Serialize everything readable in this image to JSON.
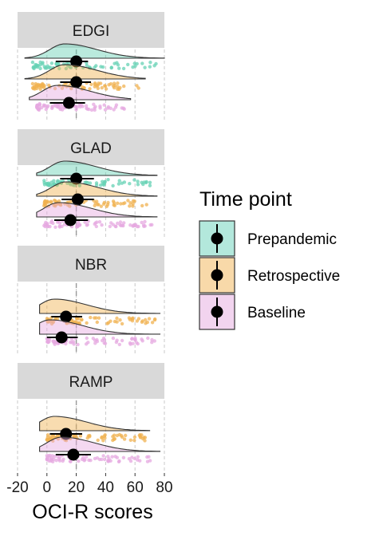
{
  "chart_data": {
    "type": "raincloud",
    "xlabel": "OCI-R scores",
    "xlim": [
      -20,
      80
    ],
    "xticks": [
      "-20",
      "0",
      "20",
      "40",
      "60",
      "80"
    ],
    "xtick_values": [
      -20,
      0,
      20,
      40,
      60,
      80
    ],
    "grid": "vertical dashed",
    "reference_line": 20,
    "legend": {
      "title": "Time point",
      "position": "right",
      "entries": [
        "Prepandemic",
        "Retrospective",
        "Baseline"
      ]
    },
    "colors": {
      "Prepandemic": "#66d1b4",
      "Retrospective": "#f0b250",
      "Baseline": "#e6a8e0",
      "Prepandemic_key": "#b3e8dc",
      "Retrospective_key": "#f8d9a9",
      "Baseline_key": "#f2d4ef"
    },
    "panels": [
      {
        "name": "EDGI",
        "groups": [
          {
            "series": "Prepandemic",
            "x": [
              20
            ],
            "mean": 20,
            "ci": [
              6,
              28
            ],
            "min": -15,
            "max": 80
          },
          {
            "series": "Retrospective",
            "x": [
              20
            ],
            "mean": 20,
            "ci": [
              9,
              30
            ],
            "min": -15,
            "max": 67
          },
          {
            "series": "Baseline",
            "x": [
              15
            ],
            "mean": 15,
            "ci": [
              2,
              26
            ],
            "min": -12,
            "max": 57
          }
        ]
      },
      {
        "name": "GLAD",
        "groups": [
          {
            "series": "Prepandemic",
            "x": [
              20
            ],
            "mean": 20,
            "ci": [
              9,
              32
            ],
            "min": -7,
            "max": 75
          },
          {
            "series": "Retrospective",
            "x": [
              21
            ],
            "mean": 21,
            "ci": [
              10,
              32
            ],
            "min": -7,
            "max": 75
          },
          {
            "series": "Baseline",
            "x": [
              16
            ],
            "mean": 16,
            "ci": [
              5,
              28
            ],
            "min": -7,
            "max": 75
          }
        ]
      },
      {
        "name": "NBR",
        "groups": [
          {
            "series": "Retrospective",
            "x": [
              13
            ],
            "mean": 13,
            "ci": [
              3,
              24
            ],
            "min": -5,
            "max": 77
          },
          {
            "series": "Baseline",
            "x": [
              10
            ],
            "mean": 10,
            "ci": [
              0,
              21
            ],
            "min": -5,
            "max": 77
          }
        ]
      },
      {
        "name": "RAMP",
        "groups": [
          {
            "series": "Retrospective",
            "x": [
              13
            ],
            "mean": 13,
            "ci": [
              2,
              24
            ],
            "min": -5,
            "max": 70
          },
          {
            "series": "Baseline",
            "x": [
              18
            ],
            "mean": 18,
            "ci": [
              6,
              30
            ],
            "min": -5,
            "max": 77
          }
        ]
      }
    ]
  }
}
